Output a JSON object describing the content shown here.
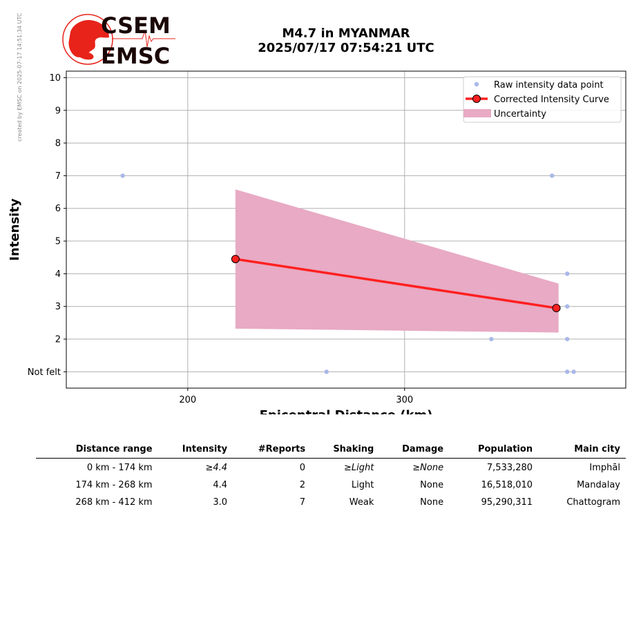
{
  "stamp": "created by EMSC on 2025-07-17 14:51:34 UTC",
  "logo": {
    "line1": "CSEM",
    "line2": "EMSC"
  },
  "title": {
    "line1": "M4.7 in MYANMAR",
    "line2": "2025/07/17 07:54:21 UTC"
  },
  "colors": {
    "raw": "#aab8e8",
    "curve": "#ff2020",
    "uncertainty": "#e8aac4",
    "grid": "#b0b0b0",
    "logo": "#e8231a"
  },
  "chart_data": {
    "type": "line",
    "xlabel": "Epicentral Distance (km)",
    "ylabel": "Intensity",
    "xlim": [
      144,
      402
    ],
    "ylim": [
      0.5,
      10.2
    ],
    "x_ticks": [
      200,
      300
    ],
    "y_ticks": [
      1,
      2,
      3,
      4,
      5,
      6,
      7,
      8,
      9,
      10
    ],
    "y_tick_labels": [
      "Not felt",
      "2",
      "3",
      "4",
      "5",
      "6",
      "7",
      "8",
      "9",
      "10"
    ],
    "grid": true,
    "legend_placement": "top-right",
    "legend": [
      "Raw intensity data point",
      "Corrected Intensity Curve",
      "Uncertainty"
    ],
    "raw_points": [
      {
        "x": 170,
        "y": 7
      },
      {
        "x": 264,
        "y": 1
      },
      {
        "x": 340,
        "y": 2
      },
      {
        "x": 368,
        "y": 7
      },
      {
        "x": 375,
        "y": 4
      },
      {
        "x": 375,
        "y": 3
      },
      {
        "x": 375,
        "y": 2
      },
      {
        "x": 375,
        "y": 1
      },
      {
        "x": 378,
        "y": 1
      }
    ],
    "curve": [
      {
        "x": 222,
        "y": 4.45
      },
      {
        "x": 370,
        "y": 2.95
      }
    ],
    "uncertainty": [
      {
        "x": 222,
        "upper": 6.58,
        "lower": 2.32
      },
      {
        "x": 371,
        "upper": 3.7,
        "lower": 2.2
      }
    ]
  },
  "table": {
    "headers": [
      "Distance range",
      "Intensity",
      "#Reports",
      "Shaking",
      "Damage",
      "Population",
      "Main city"
    ],
    "rows": [
      [
        "0 km -  174 km",
        "≥4.4",
        "0",
        "≥Light",
        "≥None",
        "7,533,280",
        "Imphāl"
      ],
      [
        "174 km -  268 km",
        "4.4",
        "2",
        "Light",
        "None",
        "16,518,010",
        "Mandalay"
      ],
      [
        "268 km -  412 km",
        "3.0",
        "7",
        "Weak",
        "None",
        "95,290,311",
        "Chattogram"
      ]
    ]
  }
}
